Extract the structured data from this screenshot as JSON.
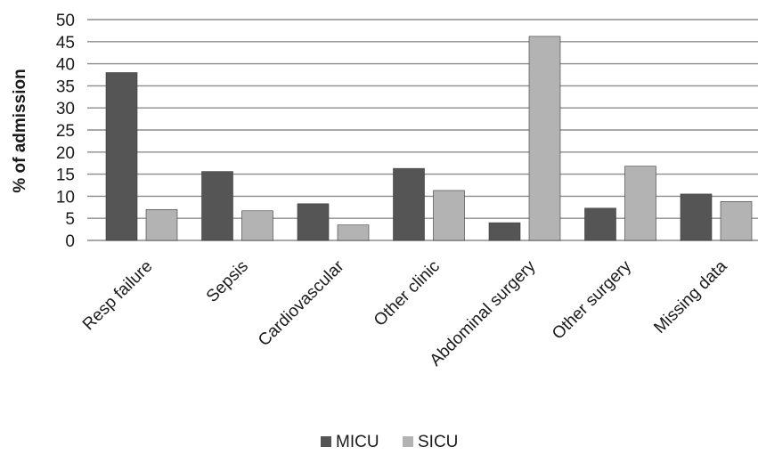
{
  "chart_data": {
    "type": "bar",
    "title": "",
    "xlabel": "",
    "ylabel": "% of admission",
    "ylim": [
      0,
      50
    ],
    "y_ticks": [
      0,
      5,
      10,
      15,
      20,
      25,
      30,
      35,
      40,
      45,
      50
    ],
    "grid": true,
    "legend_position": "bottom",
    "categories": [
      "Resp failure",
      "Sepsis",
      "Cardiovascular",
      "Other clinic",
      "Abdominal surgery",
      "Other surgery",
      "Missing data"
    ],
    "series": [
      {
        "name": "MICU",
        "color": "#555555",
        "values": [
          38,
          15.6,
          8.3,
          16.3,
          4,
          7.3,
          10.5
        ]
      },
      {
        "name": "SICU",
        "color": "#b3b3b3",
        "values": [
          7,
          6.7,
          3.5,
          11.3,
          46.2,
          16.8,
          8.8
        ]
      }
    ]
  }
}
